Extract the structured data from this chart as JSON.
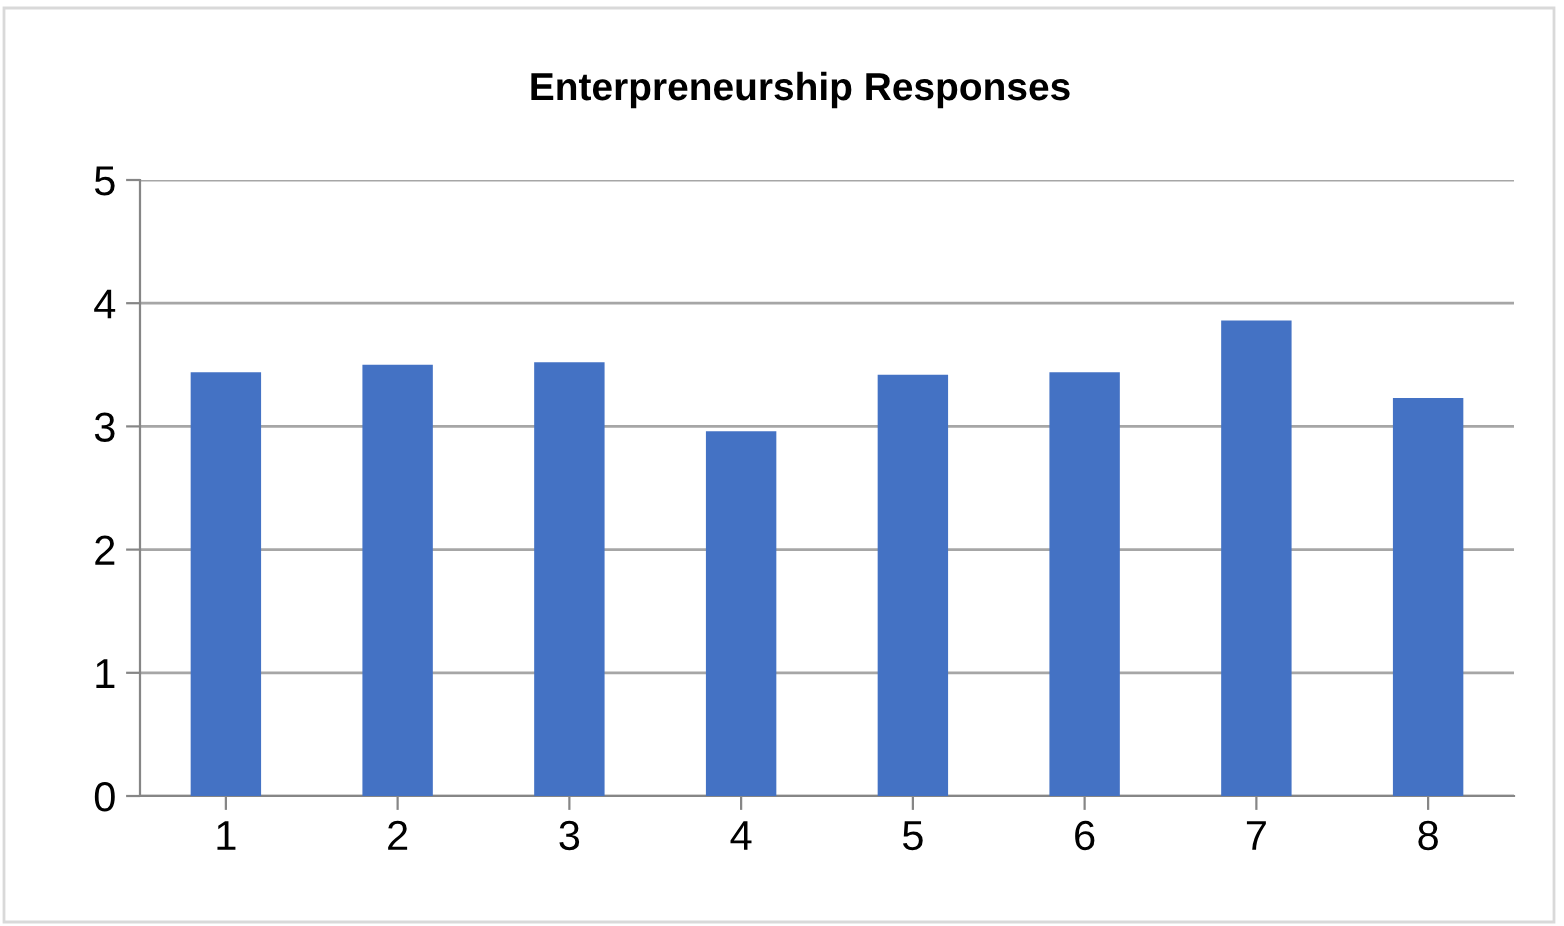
{
  "chart_data": {
    "type": "bar",
    "title": "Enterpreneurship Responses",
    "categories": [
      "1",
      "2",
      "3",
      "4",
      "5",
      "6",
      "7",
      "8"
    ],
    "values": [
      3.44,
      3.5,
      3.52,
      2.96,
      3.42,
      3.44,
      3.86,
      3.23
    ],
    "color": "#4472c4",
    "ylim": [
      0,
      5
    ],
    "yticks": [
      0,
      1,
      2,
      3,
      4,
      5
    ],
    "grid": "y",
    "legend": false
  }
}
